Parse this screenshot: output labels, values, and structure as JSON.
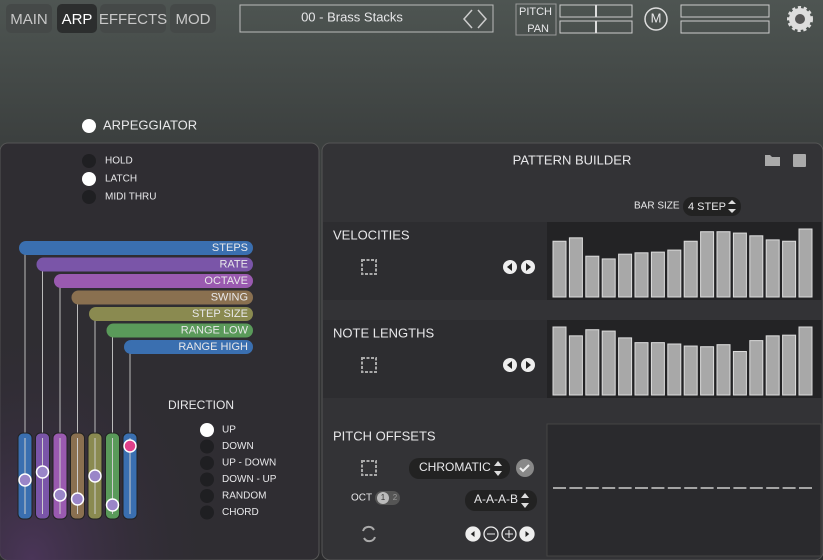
{
  "tabs": [
    "MAIN",
    "ARP",
    "EFFECTS",
    "MOD"
  ],
  "preset": "00 - Brass Stacks",
  "mixer": {
    "pitch": "PITCH",
    "pan": "PAN"
  },
  "m_button": "M",
  "arpeggiator": {
    "title": "ARPEGGIATOR",
    "options": [
      "HOLD",
      "LATCH",
      "MIDI THRU"
    ],
    "parameters": [
      "STEPS",
      "RATE",
      "OCTAVE",
      "SWING",
      "STEP SIZE",
      "RANGE LOW",
      "RANGE HIGH"
    ],
    "direction": {
      "label": "DIRECTION",
      "options": [
        "UP",
        "DOWN",
        "UP - DOWN",
        "DOWN - UP",
        "RANDOM",
        "CHORD"
      ]
    }
  },
  "pattern_builder": {
    "title": "PATTERN BUILDER",
    "bar_size": {
      "label": "BAR SIZE",
      "value": "4 STEP"
    },
    "velocities": {
      "label": "VELOCITIES",
      "values": [
        82,
        87,
        60,
        56,
        63,
        65,
        66,
        69,
        82,
        96,
        96,
        94,
        90,
        84,
        82,
        100
      ]
    },
    "note_lengths": {
      "label": "NOTE LENGTHS",
      "values": [
        100,
        87,
        96,
        94,
        84,
        77,
        77,
        75,
        72,
        71,
        74,
        64,
        80,
        87,
        88,
        100
      ]
    },
    "pitch_offsets": {
      "label": "PITCH OFFSETS",
      "scale": "CHROMATIC",
      "oct_label": "OCT",
      "oct_options": [
        "1",
        "2"
      ],
      "pattern": "A-A-A-B",
      "values": [
        0,
        0,
        0,
        0,
        0,
        0,
        0,
        0,
        0,
        0,
        0,
        0,
        0,
        0,
        0,
        0
      ]
    }
  }
}
